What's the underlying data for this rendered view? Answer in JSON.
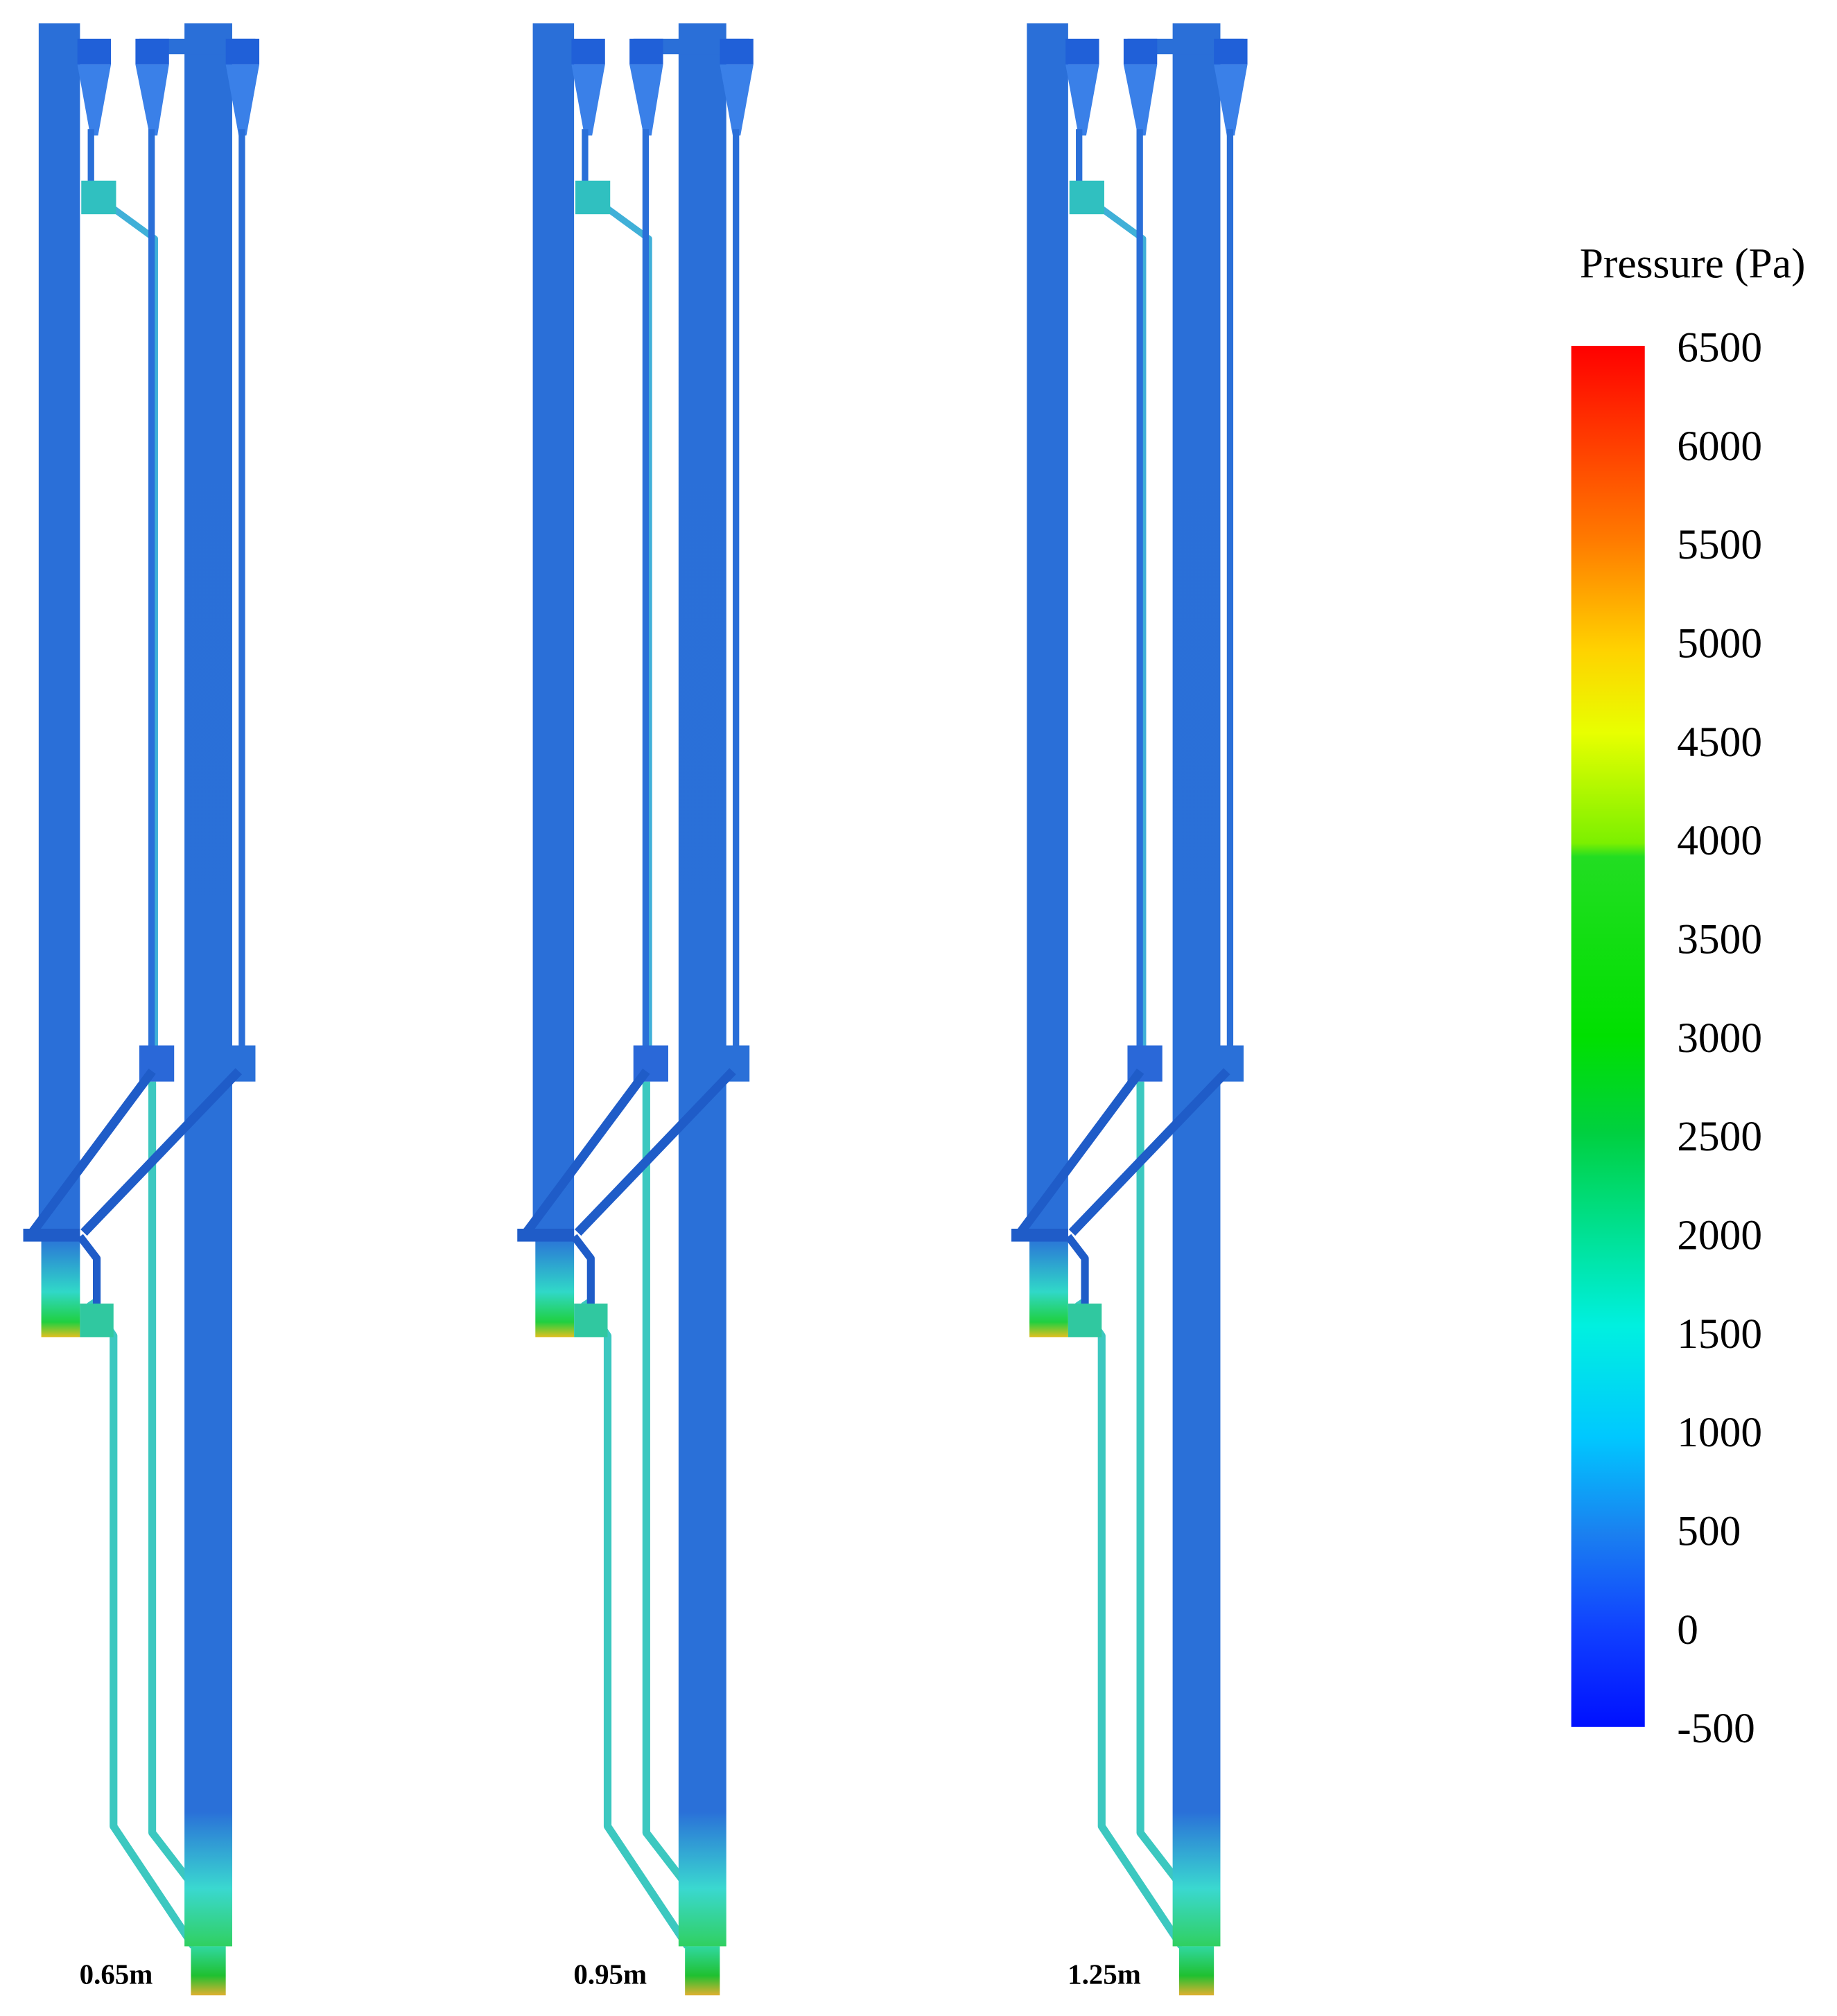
{
  "colorbar": {
    "title": "Pressure (Pa)",
    "ticks": [
      6500,
      6000,
      5500,
      5000,
      4500,
      4000,
      3500,
      3000,
      2500,
      2000,
      1500,
      1000,
      500,
      0,
      -500
    ]
  },
  "panels": [
    {
      "label": "0.65m"
    },
    {
      "label": "0.95m"
    },
    {
      "label": "1.25m"
    }
  ]
}
